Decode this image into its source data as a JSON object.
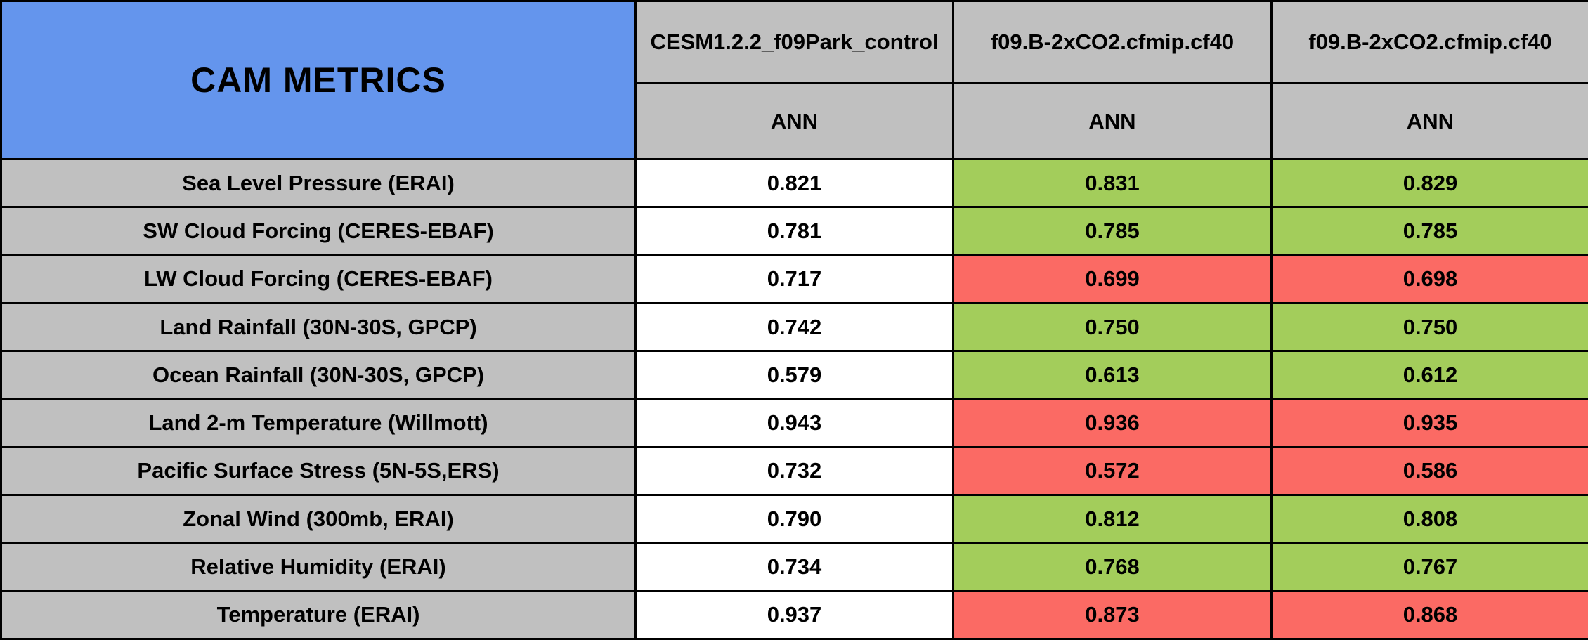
{
  "colors": {
    "header_blue": "#6495ED",
    "header_gray": "#C0C0C0",
    "neutral": "#FFFFFF",
    "better_green": "#A3CD5B",
    "worse_red": "#FB6A64",
    "border_black": "#000000"
  },
  "chart_data": {
    "type": "table",
    "title": "CAM METRICS",
    "column_headers": [
      {
        "model": "CESM1.2.2_f09Park_control",
        "season": "ANN"
      },
      {
        "model": "f09.B-2xCO2.cfmip.cf40",
        "season": "ANN"
      },
      {
        "model": "f09.B-2xCO2.cfmip.cf40",
        "season": "ANN"
      }
    ],
    "rows": [
      {
        "label": "Sea Level Pressure (ERAI)",
        "values": [
          "0.821",
          "0.831",
          "0.829"
        ],
        "statuses": [
          "neutral",
          "better",
          "better"
        ]
      },
      {
        "label": "SW Cloud Forcing (CERES-EBAF)",
        "values": [
          "0.781",
          "0.785",
          "0.785"
        ],
        "statuses": [
          "neutral",
          "better",
          "better"
        ]
      },
      {
        "label": "LW Cloud Forcing (CERES-EBAF)",
        "values": [
          "0.717",
          "0.699",
          "0.698"
        ],
        "statuses": [
          "neutral",
          "worse",
          "worse"
        ]
      },
      {
        "label": "Land Rainfall (30N-30S, GPCP)",
        "values": [
          "0.742",
          "0.750",
          "0.750"
        ],
        "statuses": [
          "neutral",
          "better",
          "better"
        ]
      },
      {
        "label": "Ocean Rainfall (30N-30S, GPCP)",
        "values": [
          "0.579",
          "0.613",
          "0.612"
        ],
        "statuses": [
          "neutral",
          "better",
          "better"
        ]
      },
      {
        "label": "Land 2-m Temperature (Willmott)",
        "values": [
          "0.943",
          "0.936",
          "0.935"
        ],
        "statuses": [
          "neutral",
          "worse",
          "worse"
        ]
      },
      {
        "label": "Pacific Surface Stress (5N-5S,ERS)",
        "values": [
          "0.732",
          "0.572",
          "0.586"
        ],
        "statuses": [
          "neutral",
          "worse",
          "worse"
        ]
      },
      {
        "label": "Zonal Wind (300mb, ERAI)",
        "values": [
          "0.790",
          "0.812",
          "0.808"
        ],
        "statuses": [
          "neutral",
          "better",
          "better"
        ]
      },
      {
        "label": "Relative Humidity (ERAI)",
        "values": [
          "0.734",
          "0.768",
          "0.767"
        ],
        "statuses": [
          "neutral",
          "better",
          "better"
        ]
      },
      {
        "label": "Temperature (ERAI)",
        "values": [
          "0.937",
          "0.873",
          "0.868"
        ],
        "statuses": [
          "neutral",
          "worse",
          "worse"
        ]
      }
    ]
  }
}
